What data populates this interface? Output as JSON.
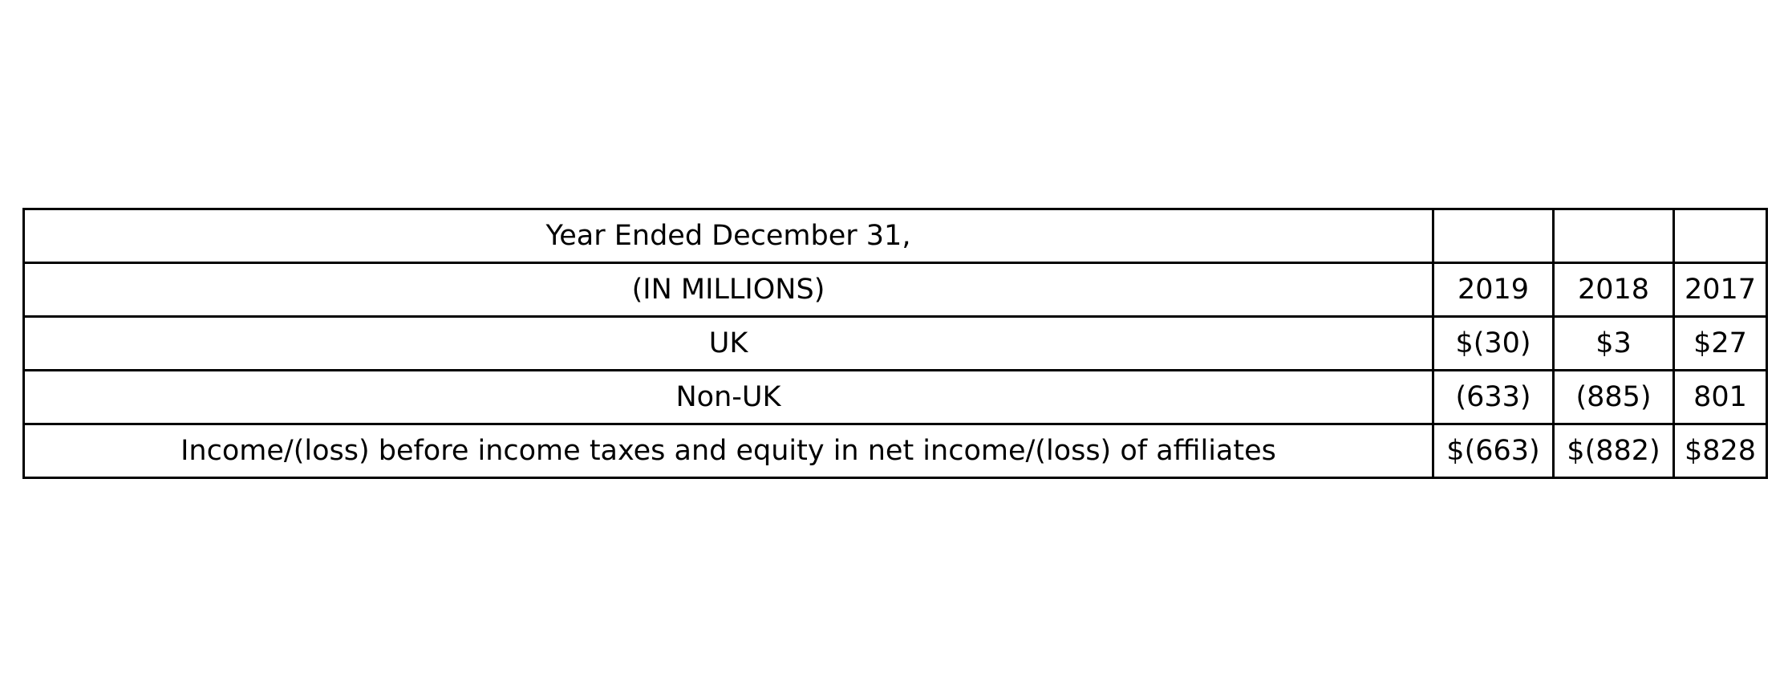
{
  "chart_data": {
    "type": "table",
    "header": {
      "caption": "Year Ended December 31,",
      "unit": "(IN MILLIONS)",
      "years": [
        "2019",
        "2018",
        "2017"
      ]
    },
    "rows": [
      {
        "label": "UK",
        "values": [
          "$(30)",
          "$3",
          "$27"
        ]
      },
      {
        "label": "Non-UK",
        "values": [
          "(633)",
          "(885)",
          "801"
        ]
      },
      {
        "label": "Income/(loss) before income taxes and equity in net income/(loss) of affiliates",
        "values": [
          "$(663)",
          "$(882)",
          "$828"
        ]
      }
    ]
  }
}
